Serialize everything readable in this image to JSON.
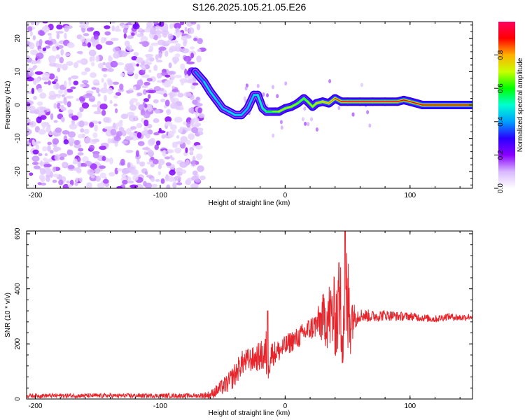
{
  "title": "S126.2025.105.21.05.E26",
  "chart_data": [
    {
      "type": "heatmap",
      "xlabel": "Height of straight line (km)",
      "ylabel": "Frequency (Hz)",
      "xlim": [
        -207,
        150
      ],
      "ylim": [
        -25,
        25
      ],
      "xticks": [
        -200,
        -100,
        0,
        100
      ],
      "yticks": [
        -20,
        -10,
        0,
        10,
        20
      ],
      "colorbar": {
        "label": "Normalized spectral amplitude",
        "range": [
          0,
          1
        ],
        "ticks": [
          0.0,
          0.2,
          0.4,
          0.6,
          0.8
        ],
        "colors": [
          "#ffffff",
          "#d8b8ff",
          "#8a00ff",
          "#2a00ff",
          "#00a0ff",
          "#00ffd0",
          "#00ff00",
          "#c8ff00",
          "#ffb000",
          "#ff0000",
          "#ff0060"
        ]
      },
      "noise_region_x": [
        -207,
        -66
      ],
      "ridge": {
        "x": [
          -72,
          -65,
          -60,
          -55,
          -50,
          -45,
          -40,
          -35,
          -30,
          -25,
          -22,
          -18,
          -15,
          -10,
          -5,
          0,
          5,
          10,
          15,
          18,
          22,
          25,
          30,
          35,
          40,
          45,
          50,
          60,
          70,
          80,
          90,
          95,
          100,
          105,
          110,
          120,
          130,
          140,
          150
        ],
        "y": [
          10,
          7,
          4,
          1.5,
          -1,
          -2,
          -3,
          -3,
          -1,
          3,
          3,
          -1,
          -2,
          -2,
          -2,
          -1,
          -0.5,
          0.5,
          2,
          1,
          -0.5,
          0.5,
          1,
          0.5,
          2,
          1,
          1,
          1,
          1,
          1,
          1,
          1.5,
          1,
          0.5,
          0,
          0,
          0,
          0,
          0
        ],
        "amplitude": [
          0.35,
          0.45,
          0.5,
          0.45,
          0.45,
          0.45,
          0.5,
          0.45,
          0.45,
          0.45,
          0.5,
          0.55,
          0.55,
          0.65,
          0.7,
          0.75,
          0.7,
          0.7,
          0.6,
          0.7,
          0.7,
          0.75,
          0.8,
          0.8,
          0.85,
          0.9,
          0.95,
          0.95,
          0.95,
          0.95,
          0.95,
          0.9,
          0.9,
          0.9,
          0.95,
          0.95,
          0.95,
          0.95,
          0.95
        ]
      }
    },
    {
      "type": "line",
      "xlabel": "Height of straight line (km)",
      "ylabel": "SNR (10 * v/v)",
      "xlim": [
        -207,
        150
      ],
      "ylim": [
        0,
        610
      ],
      "xticks": [
        -200,
        -100,
        0,
        100
      ],
      "yticks": [
        0,
        200,
        400,
        600
      ],
      "color": "#e8232a",
      "envelope": {
        "x": [
          -207,
          -150,
          -100,
          -70,
          -60,
          -55,
          -45,
          -40,
          -35,
          -30,
          -25,
          -20,
          -15,
          -10,
          -5,
          0,
          5,
          10,
          15,
          20,
          25,
          30,
          35,
          40,
          45,
          50,
          55,
          60,
          70,
          80,
          90,
          100,
          110,
          120,
          130,
          140,
          150
        ],
        "y": [
          12,
          12,
          12,
          12,
          15,
          30,
          60,
          90,
          130,
          140,
          145,
          155,
          160,
          165,
          175,
          190,
          210,
          220,
          240,
          255,
          270,
          290,
          300,
          300,
          310,
          320,
          300,
          305,
          300,
          305,
          300,
          300,
          295,
          290,
          300,
          295,
          300
        ]
      },
      "noise_amplitude": {
        "x": [
          -207,
          -70,
          -60,
          -50,
          -40,
          -25,
          -18,
          -14,
          -10,
          0,
          15,
          25,
          30,
          35,
          40,
          44,
          47,
          49,
          52,
          55,
          60,
          100,
          150
        ],
        "y": [
          8,
          8,
          15,
          30,
          45,
          45,
          60,
          110,
          45,
          40,
          40,
          50,
          90,
          130,
          150,
          200,
          220,
          260,
          170,
          50,
          25,
          15,
          12
        ]
      },
      "peaks": [
        {
          "x": -14,
          "y": 320
        },
        {
          "x": 43,
          "y": 495
        },
        {
          "x": 48,
          "y": 610
        }
      ]
    }
  ]
}
